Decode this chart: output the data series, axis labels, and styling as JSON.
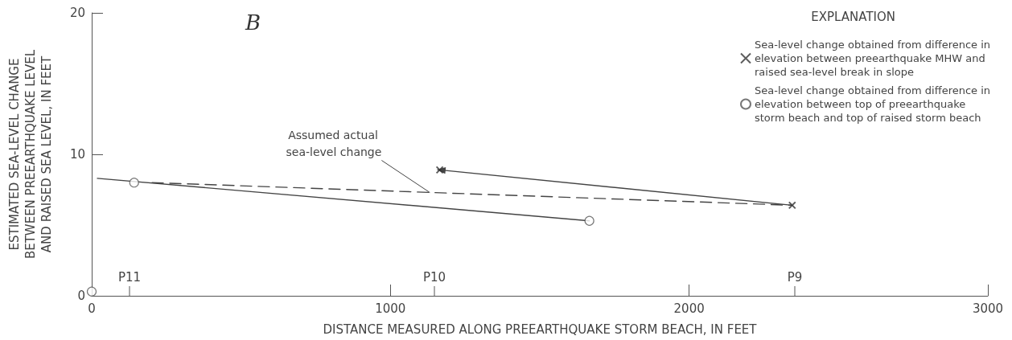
{
  "chart_data": {
    "type": "scatter",
    "title": "B",
    "legend_title": "EXPLANATION",
    "xlabel": "DISTANCE MEASURED ALONG PREEARTHQUAKE STORM BEACH, IN FEET",
    "ylabel": "ESTIMATED SEA-LEVEL CHANGE\nBETWEEN PREEARTHQUAKE LEVEL\nAND RAISED SEA LEVEL, IN FEET",
    "xlim": [
      0,
      3000
    ],
    "xticks": [
      0,
      1000,
      2000,
      3000
    ],
    "ylim": [
      0,
      20
    ],
    "yticks": [
      0,
      10,
      20
    ],
    "grid": false,
    "legend": "top right",
    "series": [
      {
        "name": "Sea-level change obtained from difference in elevation between preearthquake MHW and raised sea-level break in slope",
        "color": "#333333",
        "marker": "cross",
        "x": [
          1165,
          2345
        ],
        "values": [
          8.9,
          6.4
        ]
      },
      {
        "name": "Sea-level change obtained from difference in elevation between top of preearthquake storm beach and top of raised storm beach",
        "color": "#555555",
        "marker": "circle",
        "x": [
          0,
          142,
          1666
        ],
        "values": [
          0.3,
          8.0,
          5.3
        ]
      },
      {
        "type": "line",
        "color": "#444444",
        "marker": "none",
        "line_style": "solid",
        "x": [
          19,
          1666
        ],
        "values": [
          8.3,
          5.3
        ]
      },
      {
        "type": "line",
        "color": "#444444",
        "line_style": "solid",
        "x": [
          1165,
          2345
        ],
        "values": [
          8.9,
          6.4
        ]
      },
      {
        "type": "line",
        "color": "#444444",
        "marker": "none",
        "line_style": "dashed",
        "x": [
          202,
          2345
        ],
        "values": [
          8.0,
          6.4
        ]
      }
    ],
    "annotations": [
      {
        "text": "Assumed actual sea-level change",
        "x": 1132,
        "y": 7.3
      },
      "P11",
      "P10",
      "P9"
    ]
  }
}
